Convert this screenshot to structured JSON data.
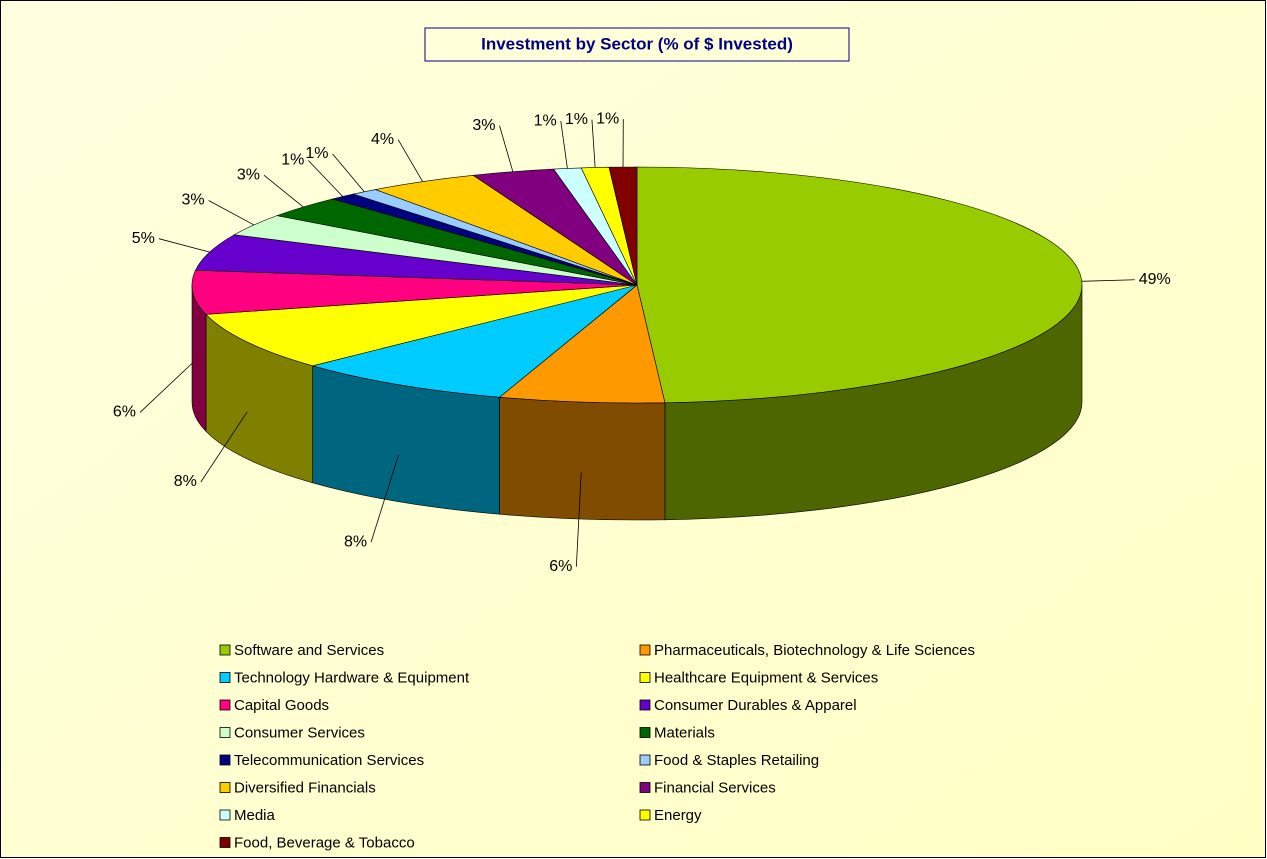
{
  "chart_data": {
    "type": "pie3d",
    "title": "Investment by Sector (% of $ Invested)",
    "categories": [
      "Software and Services",
      "Pharmaceuticals, Biotechnology & Life Sciences",
      "Technology Hardware & Equipment",
      "Healthcare Equipment & Services",
      "Capital Goods",
      "Consumer Durables & Apparel",
      "Consumer Services",
      "Materials",
      "Telecommunication Services",
      "Food & Staples Retailing",
      "Diversified Financials",
      "Financial Services",
      "Media",
      "Energy",
      "Food, Beverage & Tobacco"
    ],
    "values": [
      49,
      6,
      8,
      8,
      6,
      5,
      3,
      3,
      1,
      1,
      4,
      3,
      1,
      1,
      1
    ],
    "value_labels": [
      "49%",
      "6%",
      "8%",
      "8%",
      "6%",
      "5%",
      "3%",
      "3%",
      "1%",
      "1%",
      "4%",
      "3%",
      "1%",
      "1%",
      "1%"
    ],
    "colors": [
      "#99cc00",
      "#ff9900",
      "#00ccff",
      "#ffff00",
      "#ff0080",
      "#6600cc",
      "#ccffcc",
      "#006600",
      "#000080",
      "#99ccff",
      "#ffcc00",
      "#800080",
      "#ccffff",
      "#ffff00",
      "#800000"
    ]
  }
}
